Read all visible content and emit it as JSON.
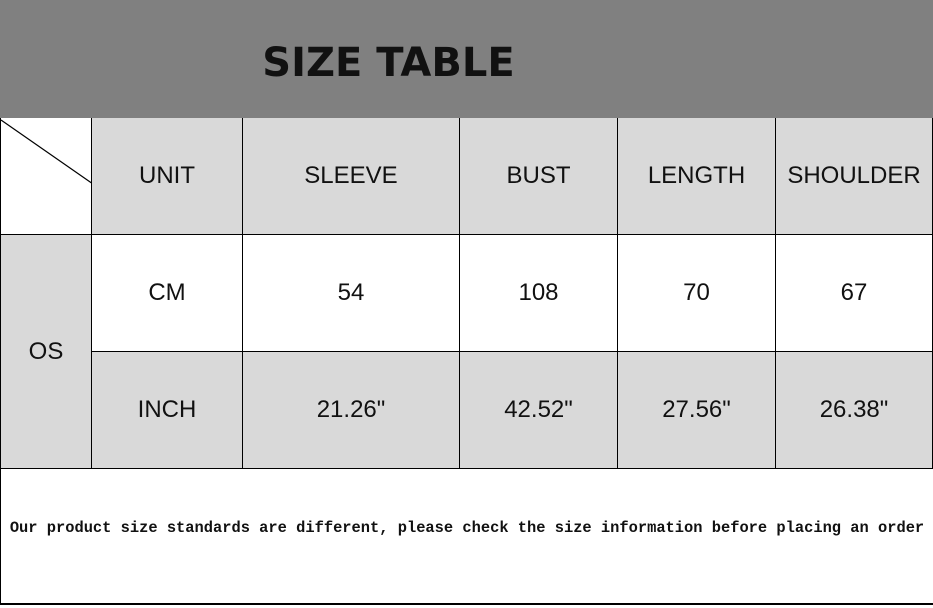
{
  "title": "SIZE TABLE",
  "colors": {
    "header_band": "#808080",
    "cell_gray": "#d9d9d9"
  },
  "table": {
    "headers": [
      "UNIT",
      "SLEEVE",
      "BUST",
      "LENGTH",
      "SHOULDER"
    ],
    "size": "OS",
    "rows": [
      [
        "CM",
        "54",
        "108",
        "70",
        "67"
      ],
      [
        "INCH",
        "21.26\"",
        "42.52\"",
        "27.56\"",
        "26.38\""
      ]
    ]
  },
  "footer_note": "Our product size standards are different, please check the size information before placing an order"
}
